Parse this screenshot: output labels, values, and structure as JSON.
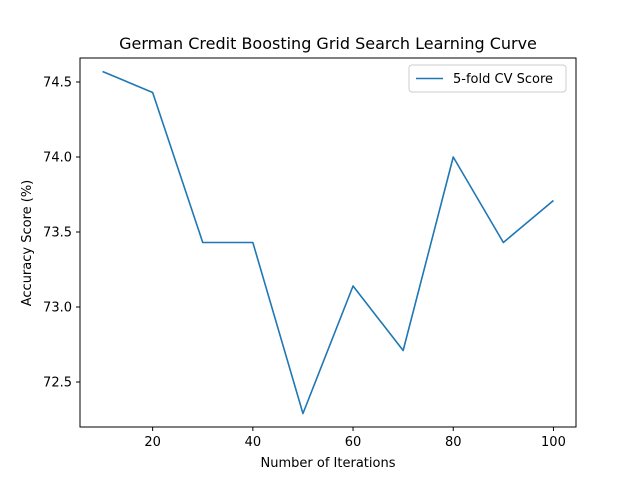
{
  "chart_data": {
    "type": "line",
    "title": "German Credit Boosting Grid Search Learning Curve",
    "xlabel": "Number of Iterations",
    "ylabel": "Accuracy Score (%)",
    "xlim": [
      5.5,
      104.5
    ],
    "ylim": [
      72.2,
      74.66
    ],
    "x_ticks": [
      20,
      40,
      60,
      80,
      100
    ],
    "x_tick_labels": [
      "20",
      "40",
      "60",
      "80",
      "100"
    ],
    "y_ticks": [
      72.5,
      73.0,
      73.5,
      74.0,
      74.5
    ],
    "y_tick_labels": [
      "72.5",
      "73.0",
      "73.5",
      "74.0",
      "74.5"
    ],
    "grid": false,
    "legend_position": "top-right",
    "series": [
      {
        "name": "5-fold CV Score",
        "color": "#1f77b4",
        "x": [
          10,
          20,
          30,
          40,
          50,
          60,
          70,
          80,
          90,
          100
        ],
        "y": [
          74.57,
          74.43,
          73.43,
          73.43,
          72.29,
          73.14,
          72.71,
          74.0,
          73.43,
          73.71
        ]
      }
    ]
  }
}
